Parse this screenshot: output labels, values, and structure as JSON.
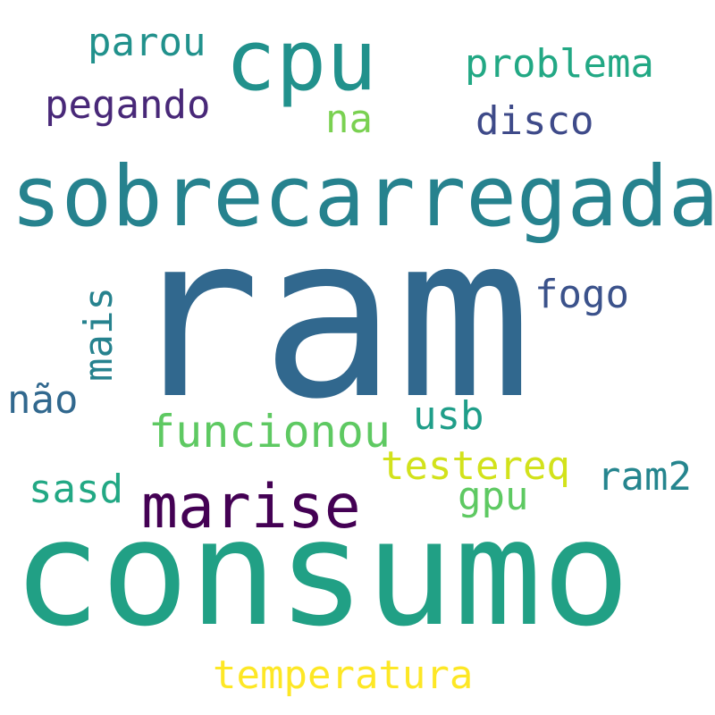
{
  "words": [
    {
      "text": "ram",
      "color": "#31688e"
    },
    {
      "text": "consumo",
      "color": "#21a085"
    },
    {
      "text": "sobrecarregada",
      "color": "#26828e"
    },
    {
      "text": "cpu",
      "color": "#21918c"
    },
    {
      "text": "marise",
      "color": "#440154"
    },
    {
      "text": "funcionou",
      "color": "#5ec962"
    },
    {
      "text": "temperatura",
      "color": "#fde725"
    },
    {
      "text": "problema",
      "color": "#22a884"
    },
    {
      "text": "parou",
      "color": "#21918c"
    },
    {
      "text": "pegando",
      "color": "#482878"
    },
    {
      "text": "disco",
      "color": "#3e4a89"
    },
    {
      "text": "fogo",
      "color": "#3b528b"
    },
    {
      "text": "na",
      "color": "#7ad151"
    },
    {
      "text": "mais",
      "color": "#26828e"
    },
    {
      "text": "não",
      "color": "#31688e"
    },
    {
      "text": "usb",
      "color": "#1f9e89"
    },
    {
      "text": "testereq",
      "color": "#d2e21b"
    },
    {
      "text": "ram2",
      "color": "#25858e"
    },
    {
      "text": "sasd",
      "color": "#22a884"
    },
    {
      "text": "gpu",
      "color": "#5ec962"
    }
  ]
}
